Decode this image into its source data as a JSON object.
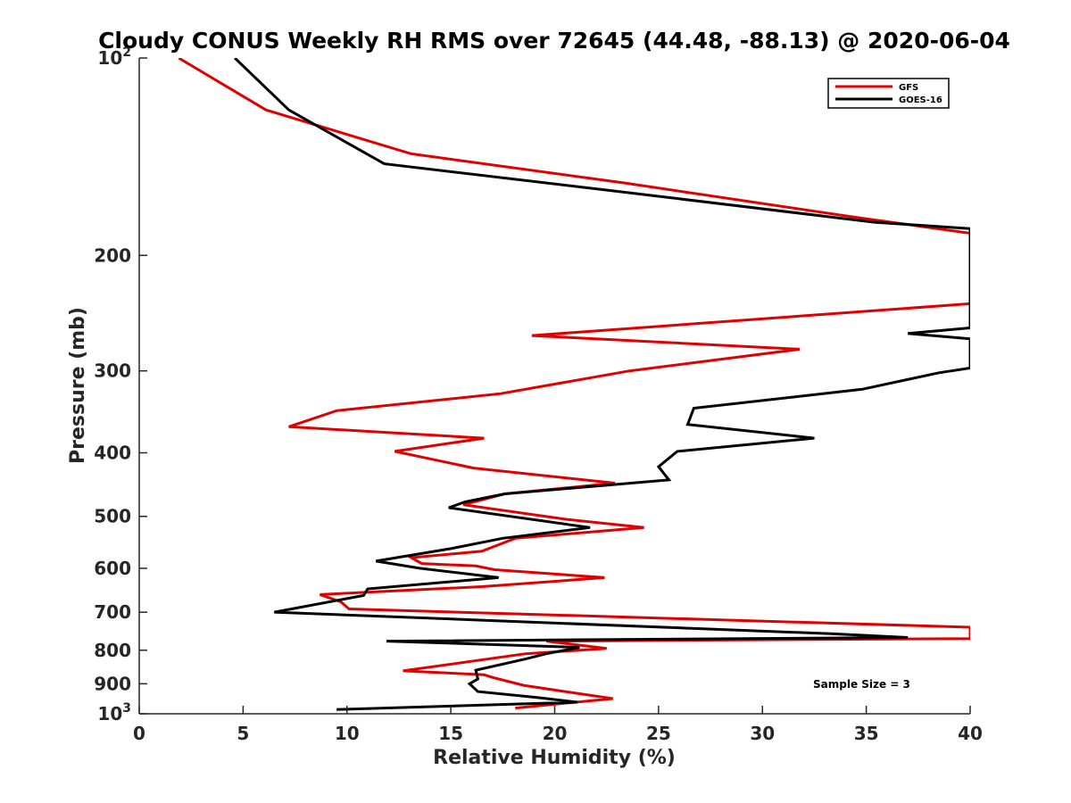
{
  "chart_data": {
    "type": "line",
    "title": "Cloudy CONUS Weekly RH RMS over 72645 (44.48, -88.13) @ 2020-06-04",
    "xlabel": "Relative Humidity (%)",
    "ylabel": "Pressure (mb)",
    "xlim": [
      0,
      40
    ],
    "ylim": [
      100,
      1000
    ],
    "y_scale": "log",
    "y_reversed": true,
    "grid": false,
    "legend_position": "top-right",
    "annotation": "Sample Size = 3",
    "x_ticks": [
      "0",
      "5",
      "10",
      "15",
      "20",
      "25",
      "30",
      "35",
      "40"
    ],
    "y_ticks": [
      {
        "value": 100,
        "base": "10",
        "exp": "2"
      },
      {
        "value": 200,
        "label": "200"
      },
      {
        "value": 300,
        "label": "300"
      },
      {
        "value": 400,
        "label": "400"
      },
      {
        "value": 500,
        "label": "500"
      },
      {
        "value": 600,
        "label": "600"
      },
      {
        "value": 700,
        "label": "700"
      },
      {
        "value": 800,
        "label": "800"
      },
      {
        "value": 900,
        "label": "900"
      },
      {
        "value": 1000,
        "base": "10",
        "exp": "3"
      }
    ],
    "series": [
      {
        "name": "GFS",
        "color": "#e00000",
        "points": [
          [
            1.9,
            100
          ],
          [
            6.1,
            120
          ],
          [
            13.1,
            140
          ],
          [
            23.3,
            155
          ],
          [
            34.5,
            175
          ],
          [
            40,
            185
          ],
          [
            40,
            237
          ],
          [
            18.9,
            265
          ],
          [
            31.8,
            278
          ],
          [
            23.6,
            300
          ],
          [
            17.4,
            325
          ],
          [
            9.5,
            345
          ],
          [
            7.2,
            365
          ],
          [
            16.6,
            380
          ],
          [
            12.3,
            398
          ],
          [
            16.1,
            422
          ],
          [
            22.9,
            445
          ],
          [
            17.6,
            462
          ],
          [
            15.6,
            480
          ],
          [
            20.5,
            505
          ],
          [
            24.3,
            520
          ],
          [
            18.1,
            540
          ],
          [
            16.5,
            565
          ],
          [
            13.1,
            578
          ],
          [
            13.6,
            590
          ],
          [
            16.2,
            595
          ],
          [
            17.1,
            603
          ],
          [
            22.4,
            620
          ],
          [
            16.5,
            640
          ],
          [
            8.7,
            658
          ],
          [
            9.7,
            675
          ],
          [
            10.1,
            692
          ],
          [
            40,
            738
          ],
          [
            40,
            768
          ],
          [
            19.6,
            775
          ],
          [
            22.5,
            795
          ],
          [
            18.6,
            810
          ],
          [
            12.7,
            860
          ],
          [
            16.6,
            872
          ],
          [
            17.0,
            880
          ],
          [
            18.5,
            905
          ],
          [
            20.5,
            925
          ],
          [
            22.8,
            948
          ],
          [
            18.1,
            980
          ]
        ]
      },
      {
        "name": "GOES-16",
        "color": "#000000",
        "points": [
          [
            4.6,
            100
          ],
          [
            7.2,
            120
          ],
          [
            11.8,
            145
          ],
          [
            23.2,
            160
          ],
          [
            35.4,
            178
          ],
          [
            40,
            182
          ],
          [
            40,
            258
          ],
          [
            37.0,
            263
          ],
          [
            40,
            268
          ],
          [
            40,
            297
          ],
          [
            38.5,
            302
          ],
          [
            34.8,
            320
          ],
          [
            26.7,
            342
          ],
          [
            26.4,
            362
          ],
          [
            32.5,
            380
          ],
          [
            25.9,
            398
          ],
          [
            25.0,
            420
          ],
          [
            25.5,
            440
          ],
          [
            17.6,
            462
          ],
          [
            15.7,
            475
          ],
          [
            14.9,
            485
          ],
          [
            21.7,
            520
          ],
          [
            17.5,
            540
          ],
          [
            15.0,
            560
          ],
          [
            11.4,
            585
          ],
          [
            13.5,
            600
          ],
          [
            17.3,
            620
          ],
          [
            11.0,
            645
          ],
          [
            10.8,
            660
          ],
          [
            6.5,
            700
          ],
          [
            33.3,
            755
          ],
          [
            37.0,
            765
          ],
          [
            11.9,
            775
          ],
          [
            21.2,
            792
          ],
          [
            19.6,
            810
          ],
          [
            18.6,
            825
          ],
          [
            16.2,
            858
          ],
          [
            16.3,
            885
          ],
          [
            15.9,
            900
          ],
          [
            16.3,
            925
          ],
          [
            19.2,
            945
          ],
          [
            21.1,
            960
          ],
          [
            9.5,
            985
          ]
        ]
      }
    ]
  }
}
